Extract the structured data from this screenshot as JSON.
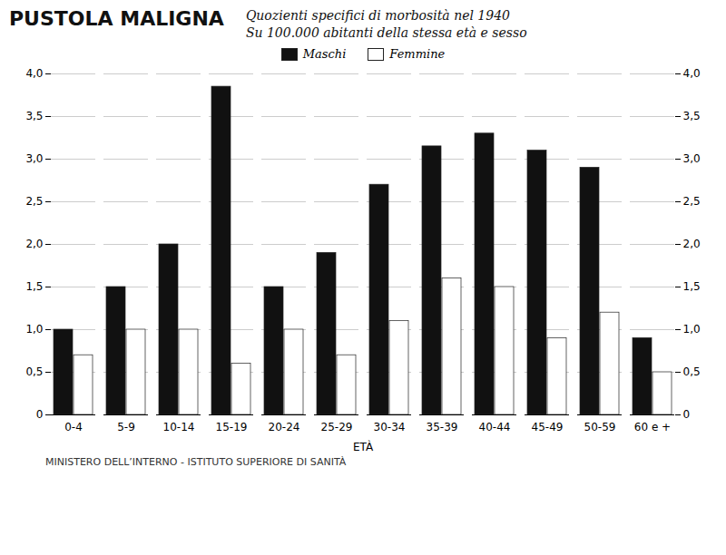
{
  "chart_data": {
    "type": "bar",
    "title": "PUSTOLA  MALIGNA",
    "subtitle": [
      "Quozienti specifici di morbosità nel 1940",
      "Su 100.000 abitanti della stessa età e sesso"
    ],
    "annotations": [
      "MINISTERO DELL’INTERNO - ISTITUTO SUPERIORE DI SANITÀ"
    ],
    "x_label": "ETÀ",
    "categories": [
      "0-4",
      "5-9",
      "10-14",
      "15-19",
      "20-24",
      "25-29",
      "30-34",
      "35-39",
      "40-44",
      "45-49",
      "50-59",
      "60 e +"
    ],
    "series": [
      {
        "name": "Maschi",
        "color": "#111111",
        "values": [
          1.0,
          1.5,
          2.0,
          3.85,
          1.5,
          1.9,
          2.7,
          3.15,
          3.3,
          3.1,
          2.9,
          0.9
        ]
      },
      {
        "name": "Femmine",
        "color": "#ffffff",
        "values": [
          0.7,
          1.0,
          1.0,
          0.6,
          1.0,
          0.7,
          1.1,
          1.6,
          1.5,
          0.9,
          1.2,
          0.5
        ]
      }
    ],
    "ylim": [
      0,
      4.0
    ],
    "yticks": [
      0,
      {
        "value": 0.5,
        "label": "0,5"
      },
      {
        "value": 1.0,
        "label": "1,0"
      },
      {
        "value": 1.5,
        "label": "1,5"
      },
      {
        "value": 2.0,
        "label": "2,0"
      },
      {
        "value": 2.5,
        "label": "2,5"
      },
      {
        "value": 3.0,
        "label": "3,0"
      },
      {
        "value": 3.5,
        "label": "3,5"
      },
      {
        "value": 4.0,
        "label": "4,0"
      }
    ],
    "grid": true,
    "legend": "upper center"
  }
}
